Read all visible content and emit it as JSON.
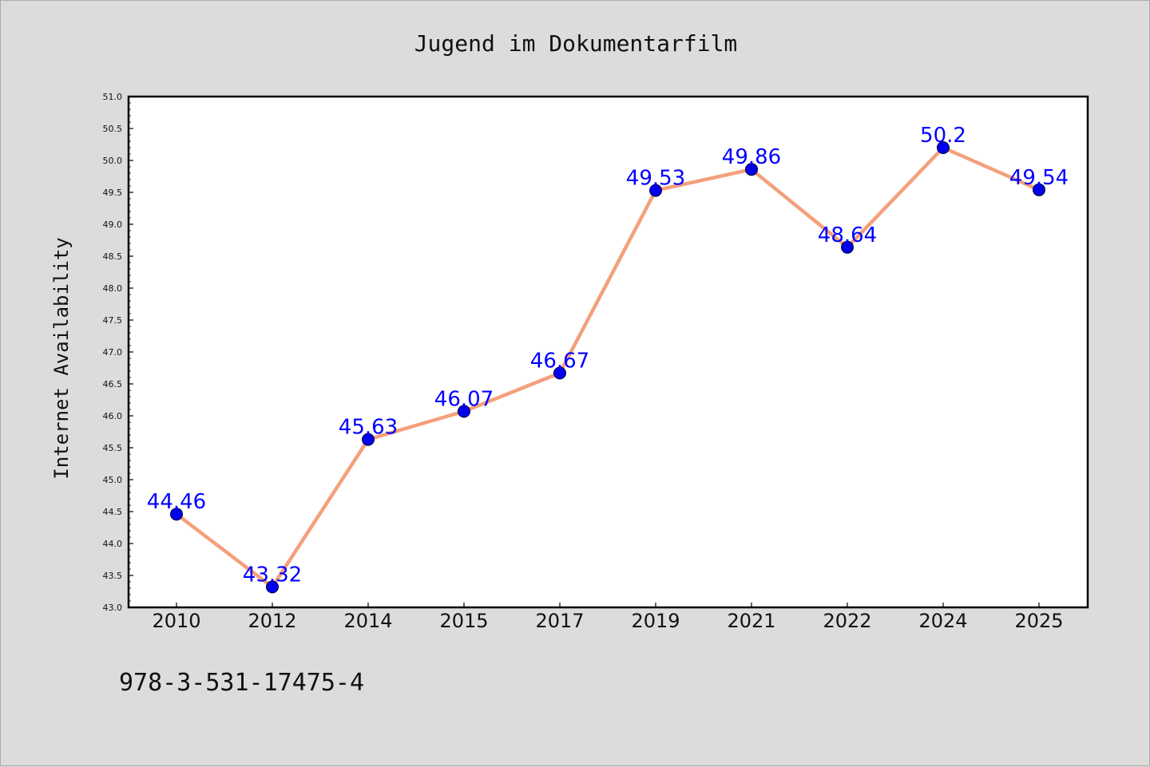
{
  "chart_data": {
    "type": "line",
    "title": "Jugend im Dokumentarfilm",
    "xlabel": "",
    "ylabel": "Internet Availability",
    "categories": [
      "2010",
      "2012",
      "2014",
      "2015",
      "2017",
      "2019",
      "2021",
      "2022",
      "2024",
      "2025"
    ],
    "series": [
      {
        "values": [
          44.46,
          43.32,
          45.63,
          46.07,
          46.67,
          49.53,
          49.86,
          48.64,
          50.2,
          49.54
        ],
        "labels": [
          "44.46",
          "43.32",
          "45.63",
          "46.07",
          "46.67",
          "49.53",
          "49.86",
          "48.64",
          "50.2",
          "49.54"
        ]
      }
    ],
    "ylim": [
      43.0,
      51.0
    ],
    "yticks": [
      "43.0",
      "43.5",
      "44.0",
      "44.5",
      "45.0",
      "45.5",
      "46.0",
      "46.5",
      "47.0",
      "47.5",
      "48.0",
      "48.5",
      "49.0",
      "49.5",
      "50.0",
      "50.5",
      "51.0"
    ],
    "grid": false,
    "legend": "none"
  },
  "footer": {
    "isbn": "978-3-531-17475-4"
  },
  "colors": {
    "line": "#f4a07c",
    "marker": "#0000ee",
    "label": "#0000ff",
    "plot_bg": "#ffffff",
    "page_bg": "#dcdcdc"
  }
}
